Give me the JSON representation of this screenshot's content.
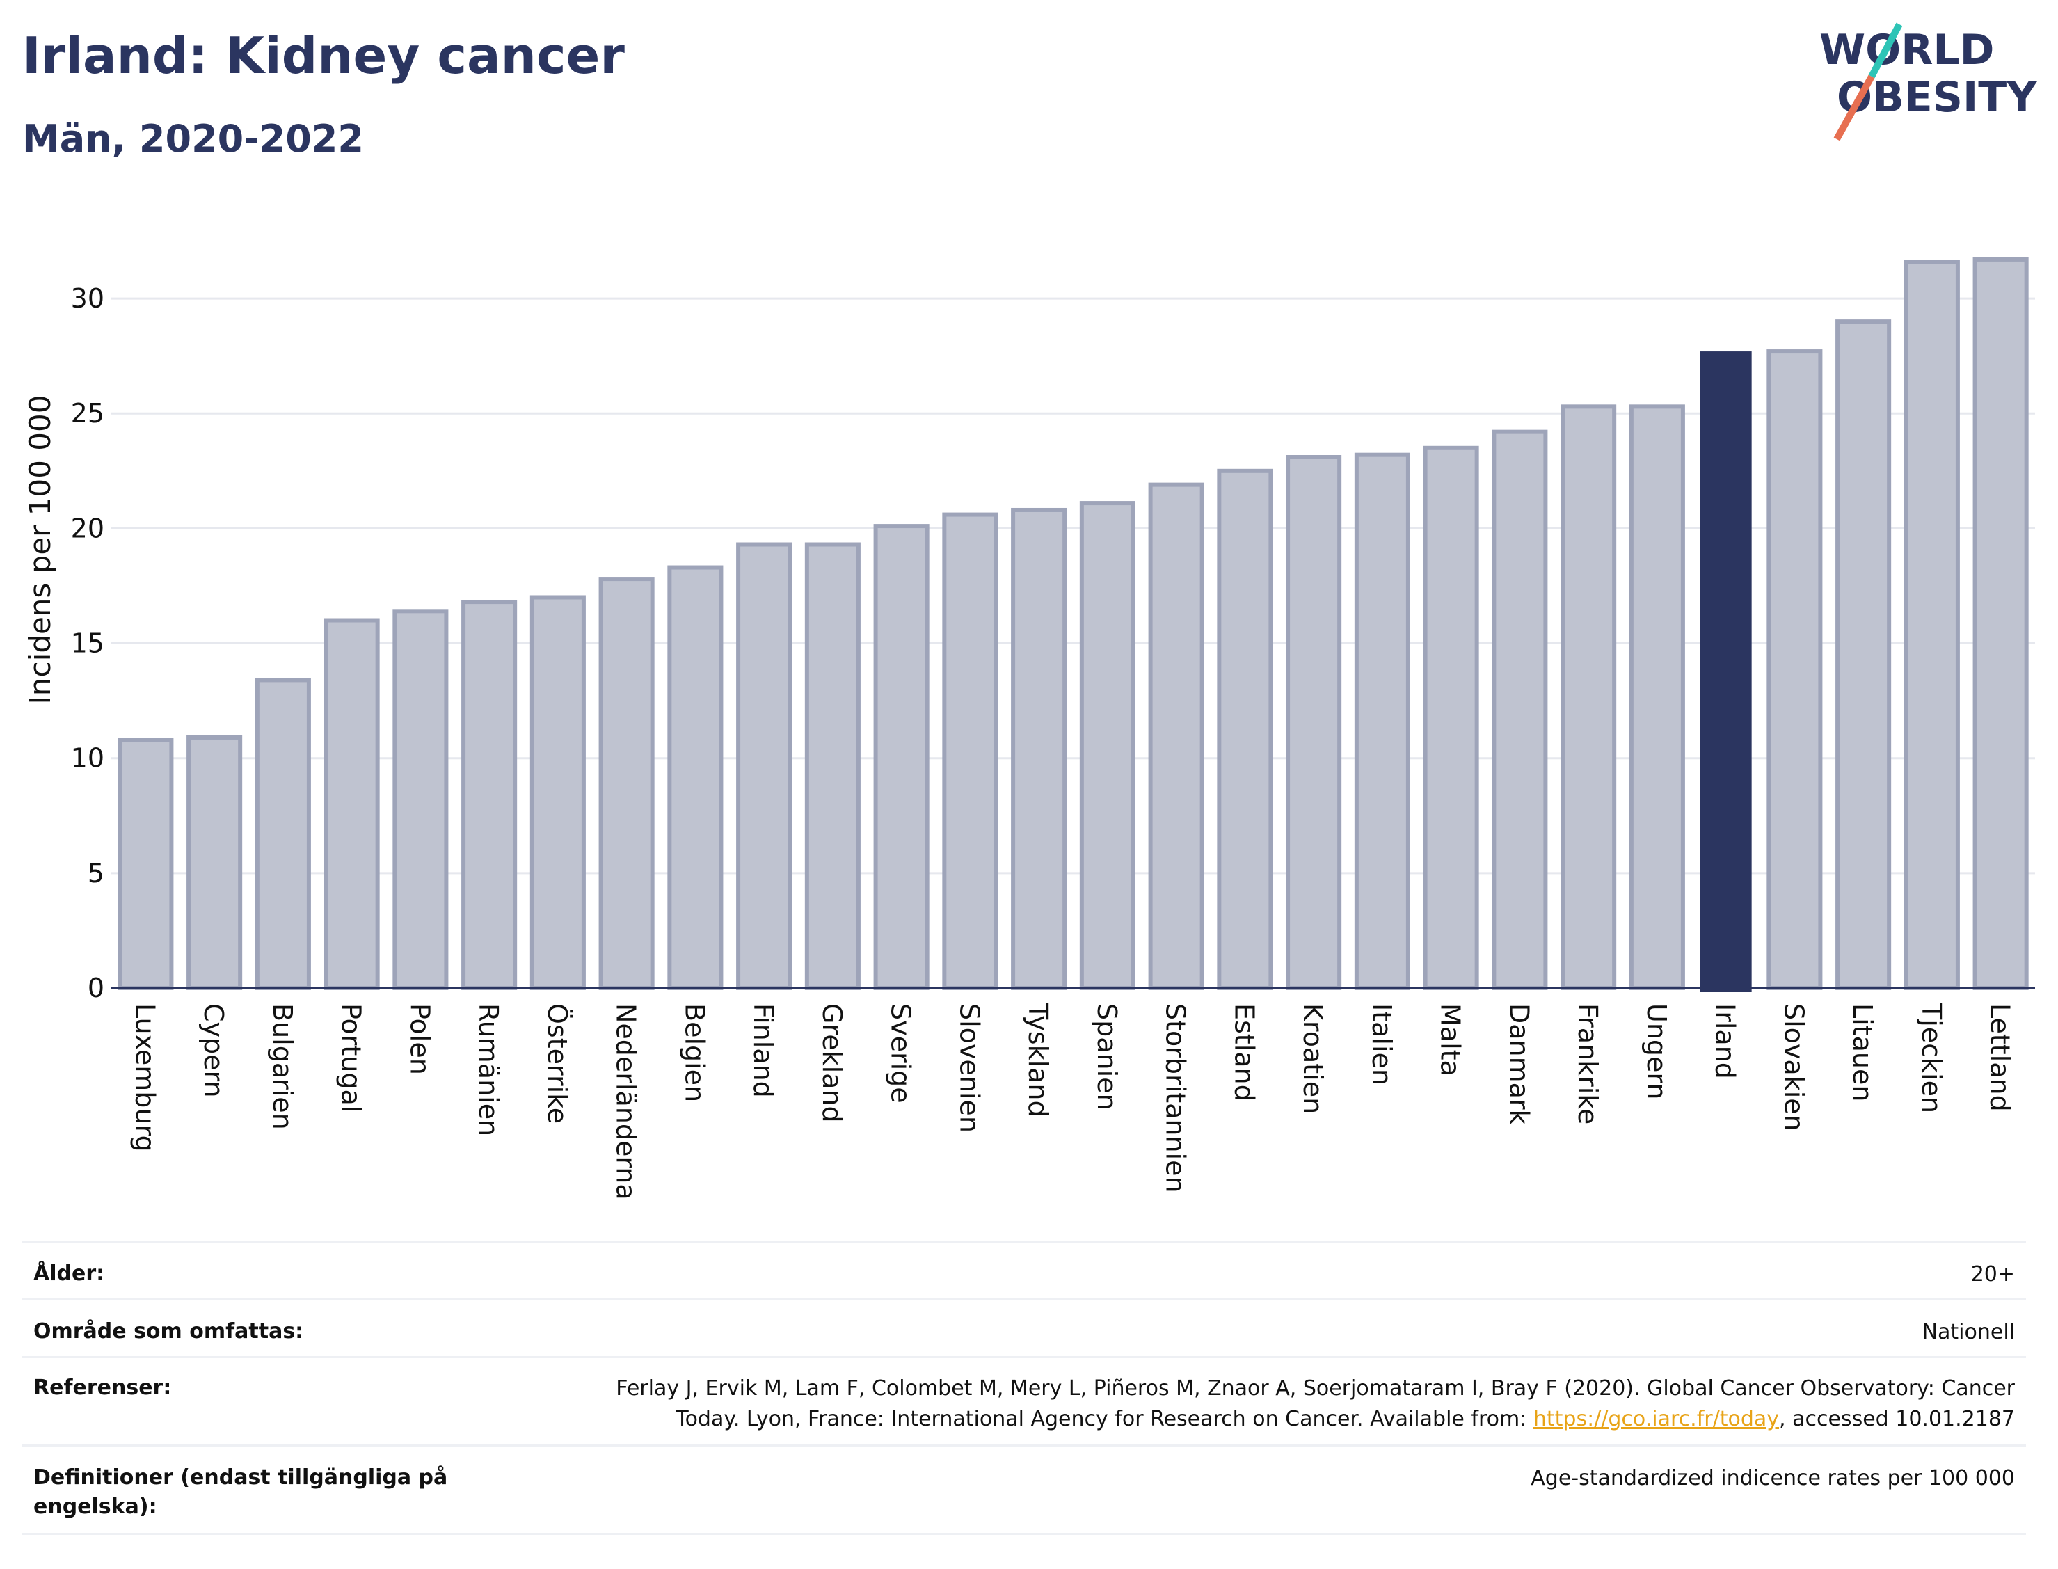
{
  "header": {
    "title": "Irland: Kidney cancer",
    "subtitle": "Män, 2020-2022"
  },
  "logo": {
    "line1": "WORLD",
    "line2": "OBESITY",
    "slash_colors": [
      "#2ec4b6",
      "#e76f51"
    ]
  },
  "colors": {
    "bar_fill": "#bfc3d0",
    "bar_stroke": "#9ea4b9",
    "highlight_fill": "#2b3560",
    "grid": "#e6e8ee",
    "axis": "#2b3560",
    "text": "#2b3560",
    "link": "#e8a317"
  },
  "chart_data": {
    "type": "bar",
    "ylabel": "Incidens per 100 000",
    "ylim": [
      0,
      33
    ],
    "yticks": [
      0,
      5,
      10,
      15,
      20,
      25,
      30
    ],
    "grid": true,
    "highlight": "Irland",
    "categories": [
      "Luxemburg",
      "Cypern",
      "Bulgarien",
      "Portugal",
      "Polen",
      "Rumänien",
      "Österrike",
      "Nederländerna",
      "Belgien",
      "Finland",
      "Grekland",
      "Sverige",
      "Slovenien",
      "Tyskland",
      "Spanien",
      "Storbritannien",
      "Estland",
      "Kroatien",
      "Italien",
      "Malta",
      "Danmark",
      "Frankrike",
      "Ungern",
      "Irland",
      "Slovakien",
      "Litauen",
      "Tjeckien",
      "Lettland"
    ],
    "values": [
      10.8,
      10.9,
      13.4,
      16.0,
      16.4,
      16.8,
      17.0,
      17.8,
      18.3,
      19.3,
      19.3,
      20.1,
      20.6,
      20.8,
      21.1,
      21.9,
      22.5,
      23.1,
      23.2,
      23.5,
      24.2,
      25.3,
      25.3,
      27.7,
      27.7,
      29.0,
      31.6,
      31.7
    ]
  },
  "meta": {
    "age_label": "Ålder:",
    "age_value": "20+",
    "coverage_label": "Område som omfattas:",
    "coverage_value": "Nationell",
    "references_label": "Referenser:",
    "references_line1": "Ferlay J, Ervik M, Lam F, Colombet M, Mery L, Piñeros M, Znaor A, Soerjomataram I, Bray F (2020). Global Cancer Observatory: Cancer",
    "references_line2_pre": "Today. Lyon, France: International Agency for Research on Cancer. Available from: ",
    "references_link": "https://gco.iarc.fr/today",
    "references_line2_post": ", accessed 10.01.2187",
    "definitions_label_1": "Definitioner (endast tillgängliga på",
    "definitions_label_2": "engelska):",
    "definitions_value": "Age-standardized indicence rates per 100 000"
  }
}
